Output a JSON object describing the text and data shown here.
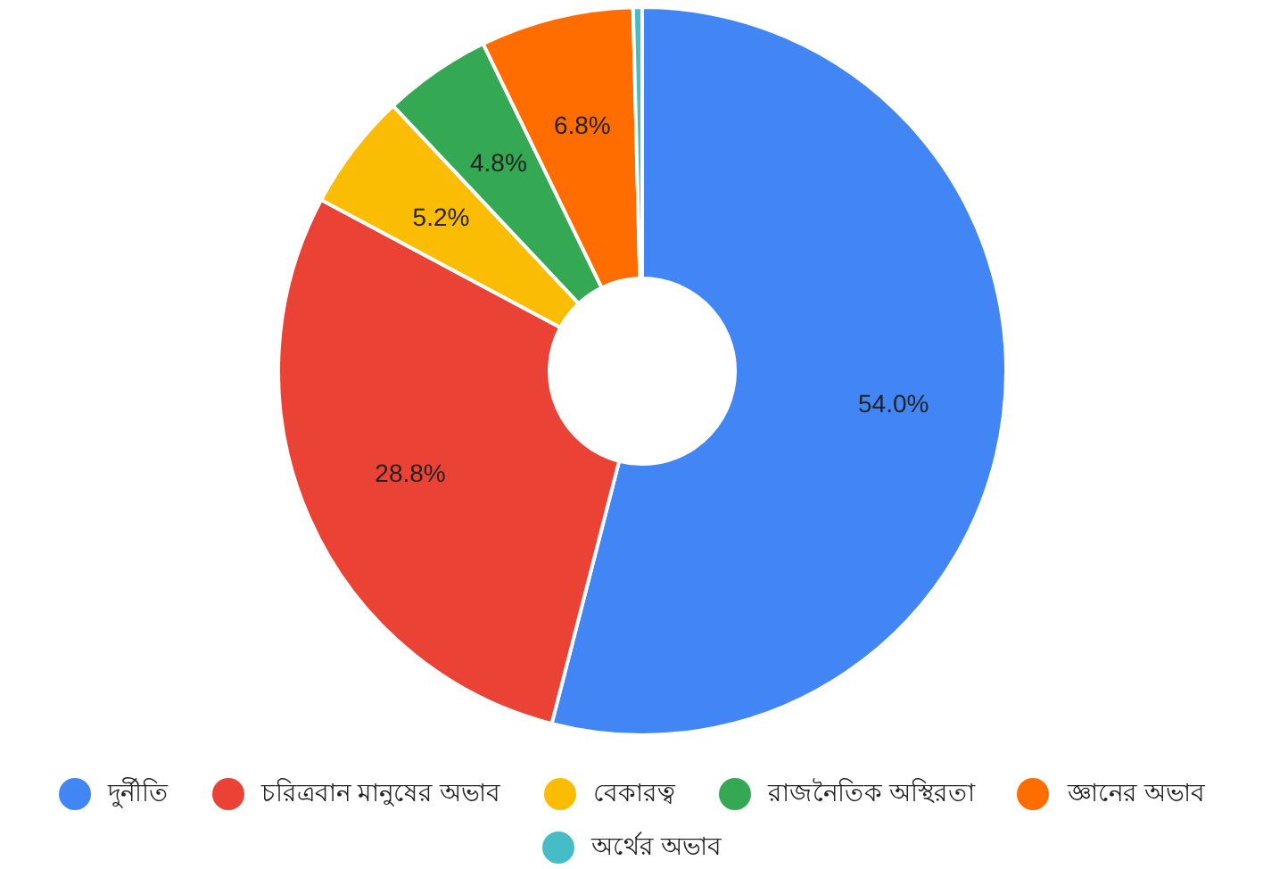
{
  "chart_data": {
    "type": "donut",
    "categories": [
      "দুর্নীতি",
      "চরিত্রবান মানুষের অভাব",
      "বেকারত্ব",
      "রাজনৈতিক অস্থিরতা",
      "জ্ঞানের অভাব",
      "অর্থের অভাব"
    ],
    "values": [
      54.0,
      28.8,
      5.2,
      4.8,
      6.8,
      0.4
    ],
    "colors": [
      "#4285f4",
      "#ea4335",
      "#fbbc04",
      "#34a853",
      "#ff6d01",
      "#46bdc6"
    ],
    "value_labels": [
      "54.0%",
      "28.8%",
      "5.2%",
      "4.8%",
      "6.8%",
      null
    ],
    "legend": "bottom"
  }
}
